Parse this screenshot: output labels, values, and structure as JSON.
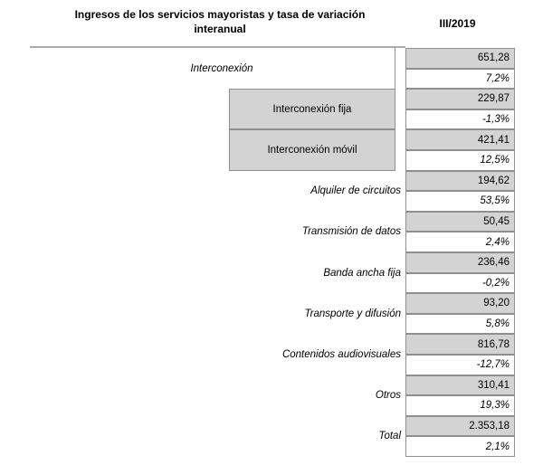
{
  "header": {
    "title": "Ingresos de los servicios mayoristas y tasa de variación interanual",
    "period": "III/2019"
  },
  "table": {
    "rows": [
      {
        "label": "Interconexión",
        "kind": "plain-center",
        "value": "651,28",
        "pct": "7,2%"
      },
      {
        "label": "Interconexión fija",
        "kind": "box",
        "value": "229,87",
        "pct": "-1,3%"
      },
      {
        "label": "Interconexión móvil",
        "kind": "box",
        "value": "421,41",
        "pct": "12,5%"
      },
      {
        "label": "Alquiler de circuitos",
        "kind": "plain-right",
        "value": "194,62",
        "pct": "53,5%"
      },
      {
        "label": "Transmisión de datos",
        "kind": "plain-right",
        "value": "50,45",
        "pct": "2,4%"
      },
      {
        "label": "Banda ancha fija",
        "kind": "plain-right",
        "value": "236,46",
        "pct": "-0,2%"
      },
      {
        "label": "Transporte y difusión",
        "kind": "plain-right",
        "value": "93,20",
        "pct": "5,8%"
      },
      {
        "label": "Contenidos audiovisuales",
        "kind": "plain-right",
        "value": "816,78",
        "pct": "-12,7%"
      },
      {
        "label": "Otros",
        "kind": "plain-right",
        "value": "310,41",
        "pct": "19,3%"
      },
      {
        "label": "Total",
        "kind": "plain-right",
        "value": "2.353,18",
        "pct": "2,1%"
      }
    ],
    "colors": {
      "cell_fill": "#d3d3d3",
      "border": "#8f8f8f",
      "rule": "#a9a9a9"
    }
  },
  "chart_data": {
    "type": "table",
    "title": "Ingresos de los servicios mayoristas y tasa de variación interanual",
    "period": "III/2019",
    "columns": [
      "Servicio",
      "Ingresos III/2019",
      "Tasa de variación interanual"
    ],
    "rows": [
      {
        "servicio": "Interconexión",
        "ingresos": 651.28,
        "variacion_pct": 7.2
      },
      {
        "servicio": "Interconexión fija",
        "ingresos": 229.87,
        "variacion_pct": -1.3
      },
      {
        "servicio": "Interconexión móvil",
        "ingresos": 421.41,
        "variacion_pct": 12.5
      },
      {
        "servicio": "Alquiler de circuitos",
        "ingresos": 194.62,
        "variacion_pct": 53.5
      },
      {
        "servicio": "Transmisión de datos",
        "ingresos": 50.45,
        "variacion_pct": 2.4
      },
      {
        "servicio": "Banda ancha fija",
        "ingresos": 236.46,
        "variacion_pct": -0.2
      },
      {
        "servicio": "Transporte y difusión",
        "ingresos": 93.2,
        "variacion_pct": 5.8
      },
      {
        "servicio": "Contenidos audiovisuales",
        "ingresos": 816.78,
        "variacion_pct": -12.7
      },
      {
        "servicio": "Otros",
        "ingresos": 310.41,
        "variacion_pct": 19.3
      },
      {
        "servicio": "Total",
        "ingresos": 2353.18,
        "variacion_pct": 2.1
      }
    ]
  }
}
